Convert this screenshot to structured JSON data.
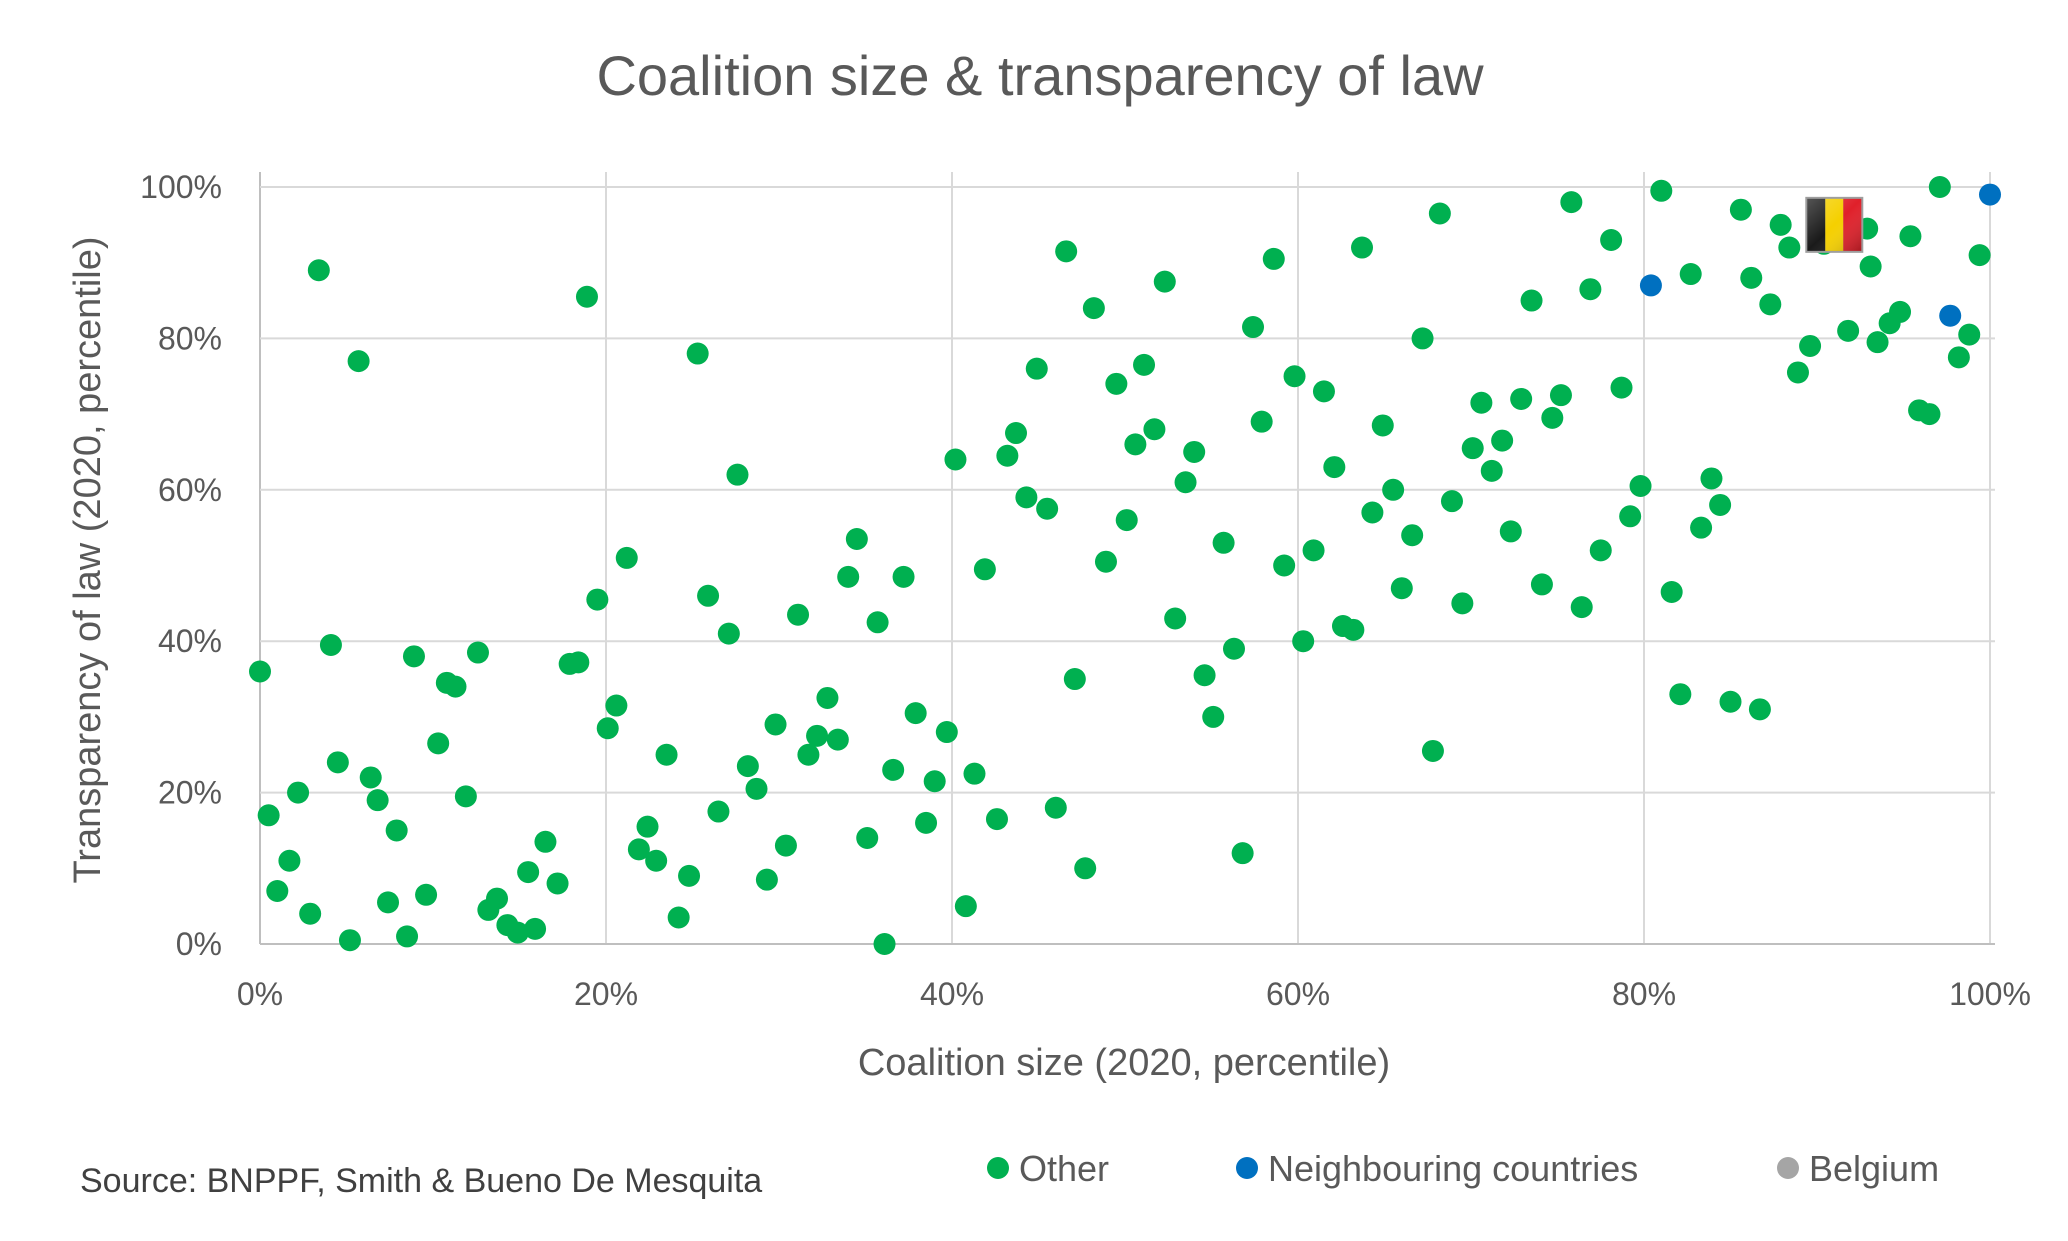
{
  "chart_data": {
    "type": "scatter",
    "title": "Coalition size & transparency of law",
    "xlabel": "Coalition size (2020, percentile)",
    "ylabel": "Transparency of law (2020, percentile)",
    "xlim": [
      0,
      100
    ],
    "ylim": [
      0,
      100
    ],
    "x_ticks": [
      "0%",
      "20%",
      "40%",
      "60%",
      "80%",
      "100%"
    ],
    "y_ticks": [
      "0%",
      "20%",
      "40%",
      "60%",
      "80%",
      "100%"
    ],
    "grid": true,
    "legend_position": "bottom-right",
    "source": "Source: BNPPF, Smith & Bueno De Mesquita",
    "annotations": [
      {
        "type": "flag",
        "country": "Belgium",
        "x": 91,
        "y": 95
      }
    ],
    "series": [
      {
        "name": "Other",
        "color": "#00b050",
        "points": [
          [
            0,
            36
          ],
          [
            0.5,
            17
          ],
          [
            1,
            7
          ],
          [
            1.7,
            11
          ],
          [
            2.2,
            20
          ],
          [
            2.9,
            4
          ],
          [
            3.4,
            89
          ],
          [
            4.1,
            39.5
          ],
          [
            4.5,
            24
          ],
          [
            5.2,
            0.5
          ],
          [
            5.7,
            77
          ],
          [
            6.4,
            22
          ],
          [
            6.8,
            19
          ],
          [
            7.4,
            5.5
          ],
          [
            7.9,
            15
          ],
          [
            8.5,
            1
          ],
          [
            8.9,
            38
          ],
          [
            9.6,
            6.5
          ],
          [
            10.3,
            26.5
          ],
          [
            10.8,
            34.5
          ],
          [
            11.3,
            34
          ],
          [
            11.9,
            19.5
          ],
          [
            12.6,
            38.5
          ],
          [
            13.2,
            4.5
          ],
          [
            13.7,
            6
          ],
          [
            14.3,
            2.5
          ],
          [
            14.9,
            1.5
          ],
          [
            15.5,
            9.5
          ],
          [
            15.9,
            2
          ],
          [
            16.5,
            13.5
          ],
          [
            17.2,
            8
          ],
          [
            17.9,
            37
          ],
          [
            18.4,
            37.2
          ],
          [
            18.9,
            85.5
          ],
          [
            19.5,
            45.5
          ],
          [
            20.1,
            28.5
          ],
          [
            20.6,
            31.5
          ],
          [
            21.2,
            51
          ],
          [
            21.9,
            12.5
          ],
          [
            22.4,
            15.5
          ],
          [
            22.9,
            11
          ],
          [
            23.5,
            25
          ],
          [
            24.2,
            3.5
          ],
          [
            24.8,
            9
          ],
          [
            25.3,
            78
          ],
          [
            25.9,
            46
          ],
          [
            26.5,
            17.5
          ],
          [
            27.1,
            41
          ],
          [
            27.6,
            62
          ],
          [
            28.2,
            23.5
          ],
          [
            28.7,
            20.5
          ],
          [
            29.3,
            8.5
          ],
          [
            29.8,
            29
          ],
          [
            30.4,
            13
          ],
          [
            31.1,
            43.5
          ],
          [
            31.7,
            25
          ],
          [
            32.2,
            27.5
          ],
          [
            32.8,
            32.5
          ],
          [
            33.4,
            27
          ],
          [
            34,
            48.5
          ],
          [
            34.5,
            53.5
          ],
          [
            35.1,
            14
          ],
          [
            35.7,
            42.5
          ],
          [
            36.1,
            0
          ],
          [
            36.6,
            23
          ],
          [
            37.2,
            48.5
          ],
          [
            37.9,
            30.5
          ],
          [
            38.5,
            16
          ],
          [
            39,
            21.5
          ],
          [
            39.7,
            28
          ],
          [
            40.2,
            64
          ],
          [
            40.8,
            5
          ],
          [
            41.3,
            22.5
          ],
          [
            41.9,
            49.5
          ],
          [
            42.6,
            16.5
          ],
          [
            43.2,
            64.5
          ],
          [
            43.7,
            67.5
          ],
          [
            44.3,
            59
          ],
          [
            44.9,
            76
          ],
          [
            45.5,
            57.5
          ],
          [
            46,
            18
          ],
          [
            46.6,
            91.5
          ],
          [
            47.1,
            35
          ],
          [
            47.7,
            10
          ],
          [
            48.2,
            84
          ],
          [
            48.9,
            50.5
          ],
          [
            49.5,
            74
          ],
          [
            50.1,
            56
          ],
          [
            50.6,
            66
          ],
          [
            51.1,
            76.5
          ],
          [
            51.7,
            68
          ],
          [
            52.3,
            87.5
          ],
          [
            52.9,
            43
          ],
          [
            53.5,
            61
          ],
          [
            54,
            65
          ],
          [
            54.6,
            35.5
          ],
          [
            55.1,
            30
          ],
          [
            55.7,
            53
          ],
          [
            56.3,
            39
          ],
          [
            56.8,
            12
          ],
          [
            57.4,
            81.5
          ],
          [
            57.9,
            69
          ],
          [
            58.6,
            90.5
          ],
          [
            59.2,
            50
          ],
          [
            59.8,
            75
          ],
          [
            60.3,
            40
          ],
          [
            60.9,
            52
          ],
          [
            61.5,
            73
          ],
          [
            62.1,
            63
          ],
          [
            62.6,
            42
          ],
          [
            63.2,
            41.5
          ],
          [
            63.7,
            92
          ],
          [
            64.3,
            57
          ],
          [
            64.9,
            68.5
          ],
          [
            65.5,
            60
          ],
          [
            66,
            47
          ],
          [
            66.6,
            54
          ],
          [
            67.2,
            80
          ],
          [
            67.8,
            25.5
          ],
          [
            68.2,
            96.5
          ],
          [
            68.9,
            58.5
          ],
          [
            69.5,
            45
          ],
          [
            70.1,
            65.5
          ],
          [
            70.6,
            71.5
          ],
          [
            71.2,
            62.5
          ],
          [
            71.8,
            66.5
          ],
          [
            72.3,
            54.5
          ],
          [
            72.9,
            72
          ],
          [
            73.5,
            85
          ],
          [
            74.1,
            47.5
          ],
          [
            74.7,
            69.5
          ],
          [
            75.2,
            72.5
          ],
          [
            75.8,
            98
          ],
          [
            76.4,
            44.5
          ],
          [
            76.9,
            86.5
          ],
          [
            77.5,
            52
          ],
          [
            78.1,
            93
          ],
          [
            78.7,
            73.5
          ],
          [
            79.2,
            56.5
          ],
          [
            79.8,
            60.5
          ],
          [
            81,
            99.5
          ],
          [
            81.6,
            46.5
          ],
          [
            82.1,
            33
          ],
          [
            82.7,
            88.5
          ],
          [
            83.3,
            55
          ],
          [
            83.9,
            61.5
          ],
          [
            84.4,
            58
          ],
          [
            85,
            32
          ],
          [
            85.6,
            97
          ],
          [
            86.2,
            88
          ],
          [
            86.7,
            31
          ],
          [
            87.3,
            84.5
          ],
          [
            87.9,
            95
          ],
          [
            88.4,
            92
          ],
          [
            88.9,
            75.5
          ],
          [
            89.6,
            79
          ],
          [
            90.4,
            92.5
          ],
          [
            91.8,
            81
          ],
          [
            92.9,
            94.5
          ],
          [
            93.1,
            89.5
          ],
          [
            93.5,
            79.5
          ],
          [
            94.2,
            82
          ],
          [
            94.8,
            83.5
          ],
          [
            95.4,
            93.5
          ],
          [
            95.9,
            70.5
          ],
          [
            96.5,
            70
          ],
          [
            97.1,
            100
          ],
          [
            98.2,
            77.5
          ],
          [
            98.8,
            80.5
          ],
          [
            99.4,
            91
          ]
        ]
      },
      {
        "name": "Neighbouring countries",
        "color": "#0070c0",
        "points": [
          [
            80.4,
            87
          ],
          [
            97.7,
            83
          ],
          [
            100,
            99
          ]
        ]
      },
      {
        "name": "Belgium",
        "color": "#a5a5a5",
        "points": []
      }
    ]
  }
}
